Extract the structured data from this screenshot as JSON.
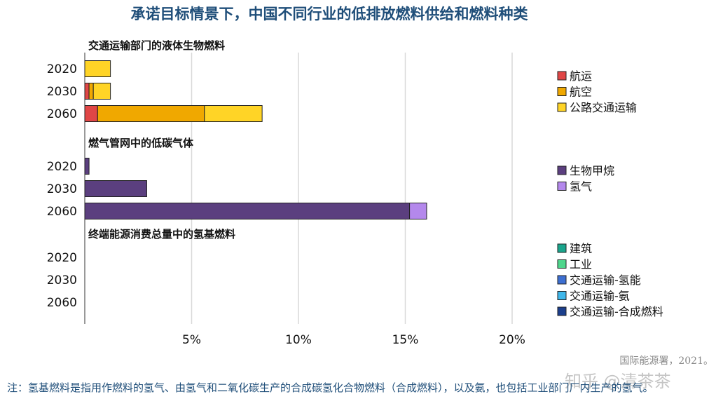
{
  "title": "承诺目标情景下，中国不同行业的低排放燃料供给和燃料种类",
  "source": "国际能源署，2021。",
  "note": "注：氢基燃料是指用作燃料的氢气、由氢气和二氧化碳生产的合成碳氢化合物燃料（合成燃料），以及氨，也包括工业部门厂内生产的氢气。",
  "watermark": "知乎 @清茶茶",
  "chart_data": {
    "type": "bar",
    "orientation": "horizontal",
    "stacked": true,
    "x_ticks": [
      "5%",
      "10%",
      "15%",
      "20%"
    ],
    "x_tick_values": [
      5,
      10,
      15,
      20
    ],
    "xlim": [
      0,
      23
    ],
    "grid": true,
    "legend_position": "right",
    "panels": [
      {
        "title": "交通运输部门的液体生物燃料",
        "categories": [
          "2020",
          "2030",
          "2060"
        ],
        "series": [
          {
            "name": "航运",
            "color": "#e04646",
            "values": [
              0,
              0.2,
              0.6
            ]
          },
          {
            "name": "航空",
            "color": "#f0a800",
            "values": [
              0,
              0.2,
              5.0
            ]
          },
          {
            "name": "公路交通运输",
            "color": "#ffd426",
            "values": [
              1.2,
              0.8,
              2.7
            ]
          }
        ]
      },
      {
        "title": "燃气管网中的低碳气体",
        "categories": [
          "2020",
          "2030",
          "2060"
        ],
        "series": [
          {
            "name": "生物甲烷",
            "color": "#5b3f7f",
            "values": [
              0.2,
              2.9,
              15.2
            ]
          },
          {
            "name": "氢气",
            "color": "#b488ec",
            "values": [
              0,
              0,
              0.8
            ]
          }
        ]
      },
      {
        "title": "终端能源消费总量中的氢基燃料",
        "categories": [
          "2020",
          "2030",
          "2060"
        ],
        "series": [
          {
            "name": "建筑",
            "color": "#1aa58c",
            "values": [
              0,
              0,
              0
            ]
          },
          {
            "name": "工业",
            "color": "#4fd68c",
            "values": [
              0,
              0,
              0
            ]
          },
          {
            "name": "交通运输-氢能",
            "color": "#3d6fd1",
            "values": [
              0,
              0,
              0
            ]
          },
          {
            "name": "交通运输-氨",
            "color": "#3fb7ea",
            "values": [
              0,
              0,
              0
            ]
          },
          {
            "name": "交通运输-合成燃料",
            "color": "#1c3f8c",
            "values": [
              0,
              0,
              0
            ]
          }
        ]
      }
    ]
  }
}
